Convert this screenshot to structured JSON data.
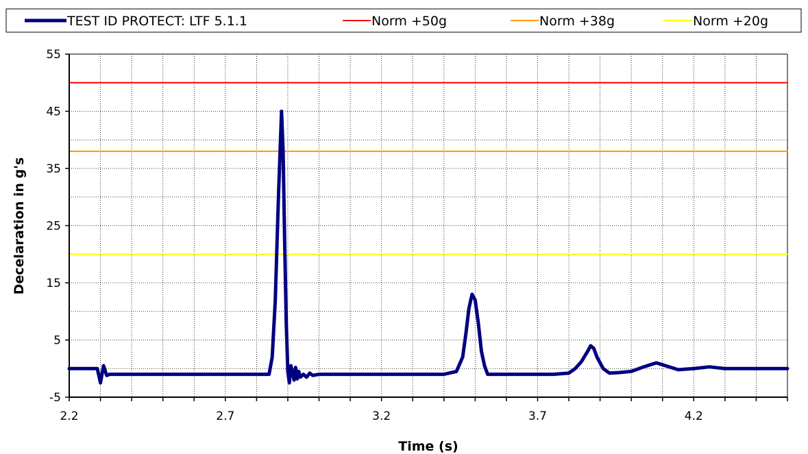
{
  "chart_data": {
    "type": "line",
    "xlabel": "Time (s)",
    "ylabel": "Decelaration in g's",
    "xlim": [
      2.2,
      4.5
    ],
    "ylim": [
      -5,
      55
    ],
    "xticks": [
      "2.2",
      "2.7",
      "3.2",
      "3.7",
      "4.2"
    ],
    "yticks": [
      "55",
      "45",
      "35",
      "25",
      "15",
      "5",
      "-5"
    ],
    "grid": true,
    "legend_position": "top",
    "series": [
      {
        "name": "TEST ID PROTECT: LTF 5.1.1",
        "color": "#000080",
        "x": [
          2.2,
          2.29,
          2.3,
          2.31,
          2.32,
          2.33,
          2.35,
          2.4,
          2.5,
          2.6,
          2.7,
          2.8,
          2.84,
          2.85,
          2.86,
          2.87,
          2.88,
          2.885,
          2.89,
          2.895,
          2.9,
          2.905,
          2.91,
          2.92,
          2.925,
          2.93,
          2.935,
          2.94,
          2.95,
          2.96,
          2.97,
          2.98,
          3.0,
          3.05,
          3.1,
          3.2,
          3.3,
          3.4,
          3.44,
          3.46,
          3.47,
          3.48,
          3.49,
          3.5,
          3.51,
          3.52,
          3.53,
          3.54,
          3.55,
          3.57,
          3.6,
          3.65,
          3.7,
          3.75,
          3.8,
          3.82,
          3.84,
          3.86,
          3.87,
          3.88,
          3.89,
          3.91,
          3.93,
          3.96,
          4.0,
          4.04,
          4.08,
          4.11,
          4.15,
          4.2,
          4.25,
          4.3,
          4.4,
          4.5
        ],
        "y": [
          0,
          0,
          -2.5,
          0.5,
          -1.2,
          -1,
          -1,
          -1,
          -1,
          -1,
          -1,
          -1,
          -1,
          2,
          12,
          30,
          45,
          38,
          22,
          8,
          -0.5,
          -2.5,
          0.5,
          -2,
          0.2,
          -1.8,
          -0.5,
          -1.5,
          -1,
          -1.5,
          -0.8,
          -1.2,
          -1,
          -1,
          -1,
          -1,
          -1,
          -1,
          -0.5,
          2,
          6,
          10.5,
          13,
          12,
          8,
          3,
          0.5,
          -1,
          -1,
          -1,
          -1,
          -1,
          -1,
          -1,
          -0.8,
          0,
          1.2,
          3,
          4,
          3.5,
          2,
          0,
          -0.8,
          -0.7,
          -0.5,
          0.3,
          1,
          0.5,
          -0.2,
          0,
          0.3,
          0,
          0,
          0
        ]
      },
      {
        "name": "Norm +50g",
        "color": "#ff0000",
        "x": [
          2.2,
          4.5
        ],
        "y": [
          50,
          50
        ]
      },
      {
        "name": "Norm +38g",
        "color": "#ff9900",
        "x": [
          2.2,
          4.5
        ],
        "y": [
          38,
          38
        ]
      },
      {
        "name": "Norm +20g",
        "color": "#ffff00",
        "x": [
          2.2,
          4.5
        ],
        "y": [
          20,
          20
        ]
      }
    ]
  }
}
